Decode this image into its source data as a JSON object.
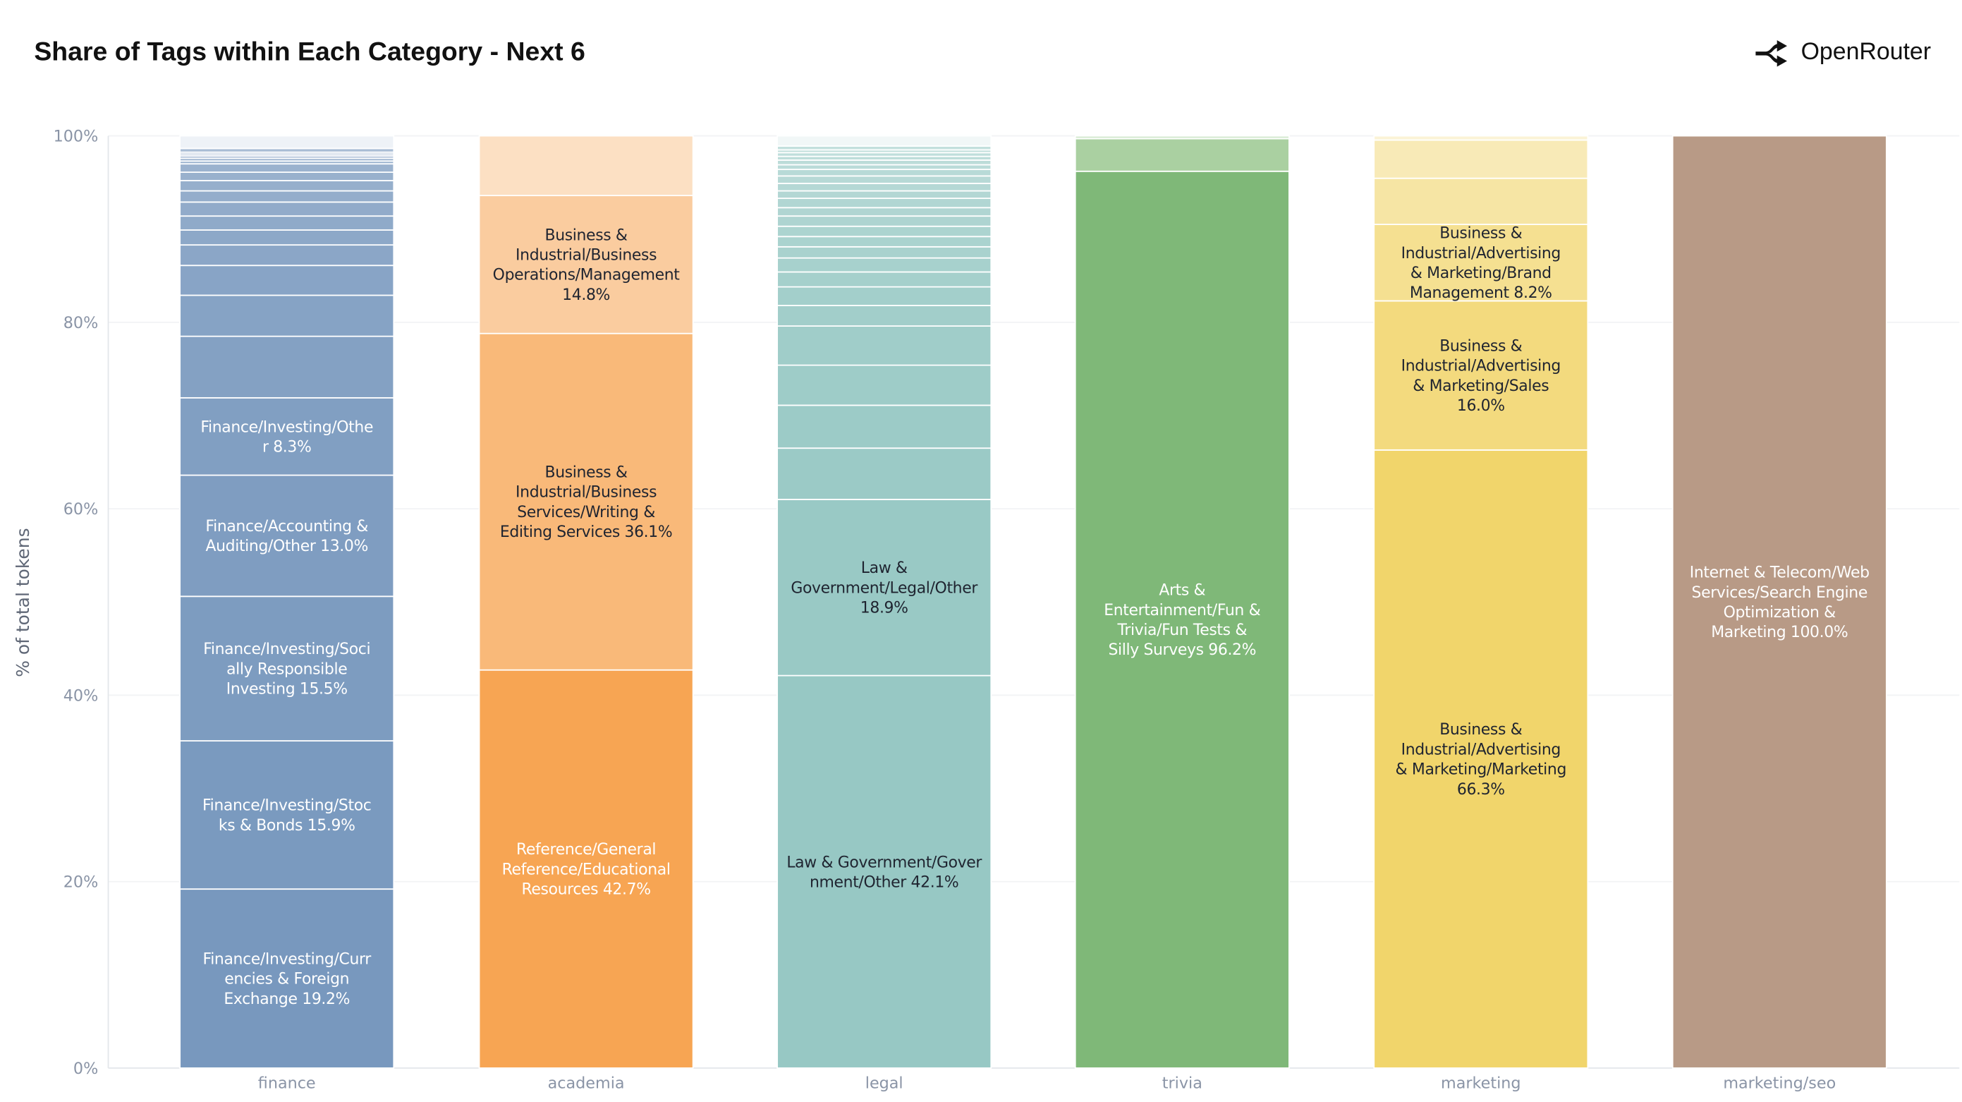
{
  "header": {
    "title": "Share of Tags within Each Category - Next 6",
    "brand": "OpenRouter"
  },
  "chart_data": {
    "type": "bar",
    "stacked": true,
    "title": "Share of Tags within Each Category - Next 6",
    "xlabel": "",
    "ylabel": "% of total tokens",
    "ylim": [
      0,
      100
    ],
    "yticks": [
      "0%",
      "20%",
      "40%",
      "60%",
      "80%",
      "100%"
    ],
    "grid": true,
    "categories": [
      "finance",
      "academia",
      "legal",
      "trivia",
      "marketing",
      "marketing/seo"
    ],
    "bars": [
      {
        "category": "finance",
        "colors": {
          "dark": "#7898be",
          "light": "#a9bdd5",
          "top": "#eef2f7"
        },
        "segments": [
          {
            "value": 19.2,
            "label_lines": [
              "Finance/Investing/Curr",
              "encies & Foreign",
              "Exchange 19.2%"
            ],
            "label_color": "#ffffff"
          },
          {
            "value": 15.9,
            "label_lines": [
              "Finance/Investing/Stoc",
              "ks & Bonds 15.9%"
            ],
            "label_color": "#ffffff"
          },
          {
            "value": 15.5,
            "label_lines": [
              "Finance/Investing/Soci",
              "ally Responsible",
              "Investing 15.5%"
            ],
            "label_color": "#ffffff"
          },
          {
            "value": 13.0,
            "label_lines": [
              "Finance/Accounting &",
              "Auditing/Other 13.0%"
            ],
            "label_color": "#ffffff"
          },
          {
            "value": 8.3,
            "label_lines": [
              "Finance/Investing/Othe",
              "r 8.3%"
            ],
            "label_color": "#ffffff"
          },
          {
            "value": 6.6
          },
          {
            "value": 4.4
          },
          {
            "value": 3.2
          },
          {
            "value": 2.2
          },
          {
            "value": 1.6
          },
          {
            "value": 1.5
          },
          {
            "value": 1.5
          },
          {
            "value": 1.2
          },
          {
            "value": 1.1
          },
          {
            "value": 0.9
          },
          {
            "value": 0.9
          },
          {
            "value": 0.3
          },
          {
            "value": 0.3
          },
          {
            "value": 0.25
          },
          {
            "value": 0.2
          },
          {
            "value": 0.2
          },
          {
            "value": 0.4
          },
          {
            "value": 1.35
          }
        ]
      },
      {
        "category": "academia",
        "colors": {
          "dark": "#f7a553",
          "light": "#facc9f",
          "top": "#fce0c3"
        },
        "segments": [
          {
            "value": 42.7,
            "label_lines": [
              "Reference/General",
              "Reference/Educational",
              "Resources 42.7%"
            ],
            "label_color": "#ffffff"
          },
          {
            "value": 36.1,
            "label_lines": [
              "Business &",
              "Industrial/Business",
              "Services/Writing &",
              "Editing Services 36.1%"
            ],
            "label_color": "#1f2430"
          },
          {
            "value": 14.8,
            "label_lines": [
              "Business &",
              "Industrial/Business",
              "Operations/Management",
              "14.8%"
            ],
            "label_color": "#1f2430"
          },
          {
            "value": 6.4
          }
        ]
      },
      {
        "category": "legal",
        "colors": {
          "dark": "#97c8c4",
          "light": "#c3e0dd",
          "top": "#f1f7f7"
        },
        "segments": [
          {
            "value": 42.1,
            "label_lines": [
              "Law & Government/Gover",
              "nment/Other 42.1%"
            ],
            "label_color": "#1f2430"
          },
          {
            "value": 18.9,
            "label_lines": [
              "Law &",
              "Government/Legal/Other",
              "18.9%"
            ],
            "label_color": "#1f2430"
          },
          {
            "value": 5.5
          },
          {
            "value": 4.6
          },
          {
            "value": 4.3
          },
          {
            "value": 4.2
          },
          {
            "value": 2.2
          },
          {
            "value": 2.0
          },
          {
            "value": 1.6
          },
          {
            "value": 1.5
          },
          {
            "value": 1.2
          },
          {
            "value": 1.1
          },
          {
            "value": 1.1
          },
          {
            "value": 1.1
          },
          {
            "value": 0.9
          },
          {
            "value": 1.0
          },
          {
            "value": 0.8
          },
          {
            "value": 0.8
          },
          {
            "value": 0.8
          },
          {
            "value": 0.7
          },
          {
            "value": 0.5
          },
          {
            "value": 0.5
          },
          {
            "value": 0.4
          },
          {
            "value": 0.4
          },
          {
            "value": 0.3
          },
          {
            "value": 0.4
          },
          {
            "value": 1.1
          }
        ]
      },
      {
        "category": "trivia",
        "colors": {
          "dark": "#7fb878",
          "light": "#aad0a1",
          "top": "#d7ebd3"
        },
        "segments": [
          {
            "value": 96.2,
            "label_lines": [
              "Arts &",
              "Entertainment/Fun &",
              "Trivia/Fun Tests &",
              "Silly Surveys 96.2%"
            ],
            "label_color": "#ffffff"
          },
          {
            "value": 3.5
          },
          {
            "value": 0.3
          }
        ]
      },
      {
        "category": "marketing",
        "colors": {
          "dark": "#f1d56b",
          "light": "#f8eab7",
          "top": "#fbf3d6"
        },
        "segments": [
          {
            "value": 66.3,
            "label_lines": [
              "Business &",
              "Industrial/Advertising",
              "& Marketing/Marketing",
              "66.3%"
            ],
            "label_color": "#1f2430"
          },
          {
            "value": 16.0,
            "label_lines": [
              "Business &",
              "Industrial/Advertising",
              "& Marketing/Sales",
              "16.0%"
            ],
            "label_color": "#1f2430"
          },
          {
            "value": 8.2,
            "label_lines": [
              "Business &",
              "Industrial/Advertising",
              "& Marketing/Brand",
              "Management 8.2%"
            ],
            "label_color": "#1f2430"
          },
          {
            "value": 4.95
          },
          {
            "value": 4.1
          },
          {
            "value": 0.45
          }
        ]
      },
      {
        "category": "marketing/seo",
        "colors": {
          "dark": "#b89a86",
          "light": "#b89a86",
          "top": "#b89a86"
        },
        "segments": [
          {
            "value": 100.0,
            "label_lines": [
              "Internet & Telecom/Web",
              "Services/Search Engine",
              "Optimization &",
              "Marketing 100.0%"
            ],
            "label_color": "#ffffff"
          }
        ]
      }
    ]
  }
}
